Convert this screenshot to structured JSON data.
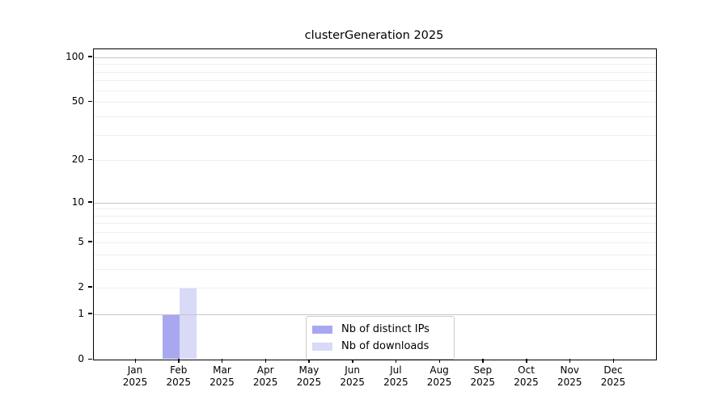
{
  "chart_data": {
    "type": "bar",
    "title": "clusterGeneration 2025",
    "categories": [
      "Jan",
      "Feb",
      "Mar",
      "Apr",
      "May",
      "Jun",
      "Jul",
      "Aug",
      "Sep",
      "Oct",
      "Nov",
      "Dec"
    ],
    "x_year_label": "2025",
    "series": [
      {
        "name": "Nb of distinct IPs",
        "color": "#a8a8f0",
        "values": [
          0,
          1,
          0,
          0,
          0,
          0,
          0,
          0,
          0,
          0,
          0,
          0
        ]
      },
      {
        "name": "Nb of downloads",
        "color": "#d9d9f8",
        "values": [
          0,
          2,
          0,
          0,
          0,
          0,
          0,
          0,
          0,
          0,
          0,
          0
        ]
      }
    ],
    "y_axis": {
      "scale": "log1p",
      "ticks": [
        0,
        1,
        2,
        5,
        10,
        20,
        50,
        100
      ],
      "top": 113
    },
    "grid": {
      "major": [
        1,
        10,
        100
      ],
      "minor": [
        2,
        3,
        4,
        5,
        6,
        7,
        8,
        9,
        20,
        30,
        40,
        50,
        60,
        70,
        80,
        90
      ],
      "major_color": "#c6c6c6",
      "minor_color": "#efefef"
    },
    "legend": {
      "position": "lower center",
      "border_color": "#cccccc"
    },
    "xlabel": "",
    "ylabel": ""
  }
}
